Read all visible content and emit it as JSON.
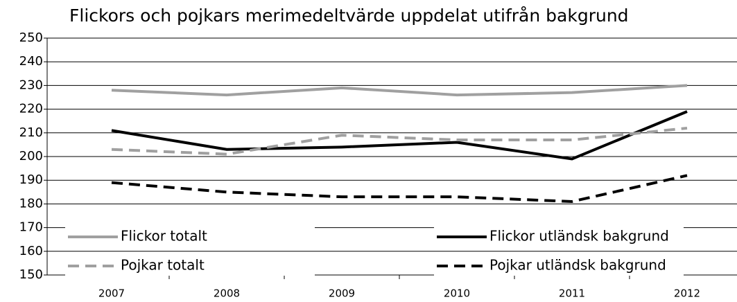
{
  "chart_data": {
    "type": "line",
    "title": "Flickors och pojkars merimedeltvärde uppdelat utifrån bakgrund",
    "categories": [
      "2007",
      "2008",
      "2009",
      "2010",
      "2011",
      "2012"
    ],
    "series": [
      {
        "name": "Flickor totalt",
        "color": "#a0a0a0",
        "dashed": false,
        "values": [
          228,
          226,
          229,
          226,
          227,
          230
        ]
      },
      {
        "name": "Flickor utländsk bakgrund",
        "color": "#000000",
        "dashed": false,
        "values": [
          211,
          203,
          204,
          206,
          199,
          219
        ]
      },
      {
        "name": "Pojkar totalt",
        "color": "#a0a0a0",
        "dashed": true,
        "values": [
          203,
          201,
          209,
          207,
          207,
          212
        ]
      },
      {
        "name": "Pojkar utländsk bakgrund",
        "color": "#000000",
        "dashed": true,
        "values": [
          189,
          185,
          183,
          183,
          181,
          192
        ]
      }
    ],
    "ylim": [
      150,
      250
    ],
    "yticks": [
      150,
      160,
      170,
      180,
      190,
      200,
      210,
      220,
      230,
      240,
      250
    ],
    "grid": true,
    "legend": "bottom"
  }
}
